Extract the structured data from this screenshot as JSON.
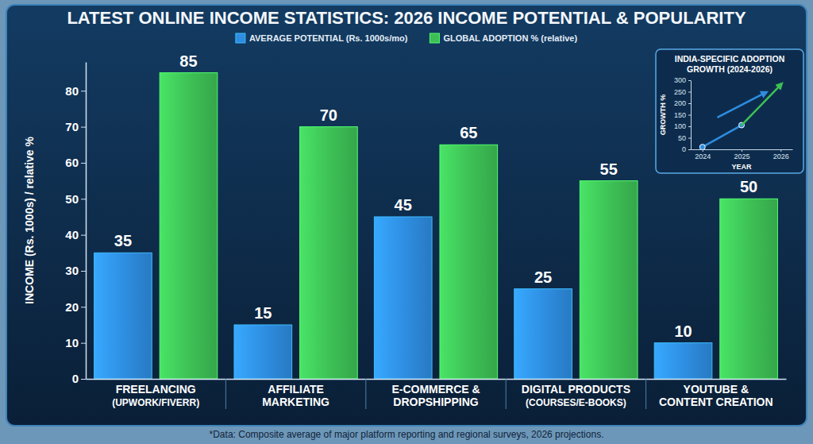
{
  "chart_data": [
    {
      "type": "bar",
      "title": "LATEST ONLINE INCOME STATISTICS: 2026 INCOME POTENTIAL & POPULARITY",
      "categories": [
        "FREELANCING\n(UPWORK/FIVERR)",
        "AFFILIATE\nMARKETING",
        "E-COMMERCE &\nDROPSHIPPING",
        "DIGITAL PRODUCTS\n(COURSES/E-BOOKS)",
        "YOUTUBE &\nCONTENT CREATION"
      ],
      "series": [
        {
          "name": "AVERAGE POTENTIAL (Rs. 1000s/mo)",
          "color": "#2e8de0",
          "values": [
            35,
            15,
            45,
            25,
            10
          ]
        },
        {
          "name": "GLOBAL ADOPTION % (relative)",
          "color": "#3dbf55",
          "values": [
            85,
            70,
            65,
            55,
            50
          ]
        }
      ],
      "y_label": "INCOME (Rs. 1000s) / relative %",
      "ylim": [
        0,
        88
      ],
      "yticks": [
        0,
        10,
        20,
        30,
        40,
        50,
        60,
        70,
        80
      ],
      "grid": false,
      "legend": "top",
      "data_labels": true,
      "source": "*Data: Composite average of major platform reporting and regional surveys, 2026 projections."
    },
    {
      "type": "line",
      "title": "INDIA-SPECIFIC ADOPTION GROWTH (2024-2026)",
      "x_label": "YEAR",
      "y_label": "GROWTH %",
      "xlim": [
        2023.7,
        2026.3
      ],
      "xticks": [
        2024,
        2025,
        2026
      ],
      "ylim": [
        0,
        300
      ],
      "yticks": [
        0,
        50,
        100,
        150,
        200,
        250,
        300
      ],
      "series": [
        {
          "color": "#2e8de0",
          "marker": "circle",
          "line_style": "solid",
          "x": [
            2024,
            2025
          ],
          "values": [
            10,
            105
          ]
        },
        {
          "color": "#3dbf55",
          "line_style": "arrow",
          "x": [
            2025,
            2026
          ],
          "values": [
            105,
            280
          ]
        },
        {
          "color": "#2e8de0",
          "line_style": "arrow",
          "x": [
            2024.4,
            2025.6
          ],
          "values": [
            140,
            245
          ]
        }
      ]
    }
  ]
}
